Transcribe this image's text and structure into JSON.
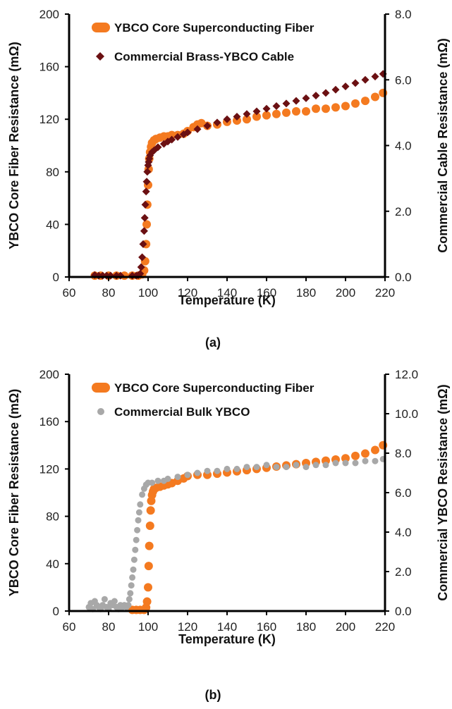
{
  "chart_data": [
    {
      "type": "scatter",
      "panel_label": "(a)",
      "xlabel": "Temperature (K)",
      "ylabel_left": "YBCO Core Fiber Resistance (mΩ)",
      "ylabel_right": "Commercial Cable Resistance (mΩ)",
      "xlim": [
        60,
        220
      ],
      "xticks": [
        "60",
        "80",
        "100",
        "120",
        "140",
        "160",
        "180",
        "200",
        "220"
      ],
      "ylim_left": [
        0,
        200
      ],
      "yticks_left": [
        "0",
        "40",
        "80",
        "120",
        "160",
        "200"
      ],
      "ylim_right": [
        0,
        8
      ],
      "yticks_right": [
        "0.0",
        "2.0",
        "4.0",
        "6.0",
        "8.0"
      ],
      "grid": false,
      "legend_position": "top-left",
      "series": [
        {
          "name": "YBCO Core Superconducting Fiber",
          "axis": "left",
          "color": "#f47a20",
          "marker": "circle",
          "x": [
            73,
            76,
            80,
            84,
            88,
            92,
            95,
            97,
            98,
            98.5,
            99,
            99.3,
            99.6,
            100,
            100.3,
            100.6,
            101,
            101.5,
            102,
            103,
            104,
            106,
            108,
            110,
            112,
            115,
            118,
            120,
            123,
            125,
            127,
            130,
            135,
            140,
            145,
            150,
            155,
            160,
            165,
            170,
            175,
            180,
            185,
            190,
            195,
            200,
            205,
            210,
            215,
            219
          ],
          "y": [
            1,
            1,
            1,
            1,
            1,
            1,
            1,
            2,
            5,
            12,
            25,
            40,
            55,
            70,
            82,
            90,
            95,
            99,
            102,
            104,
            105,
            106,
            107,
            107,
            108,
            108,
            109,
            111,
            114,
            116,
            117,
            115,
            116,
            118,
            119,
            120,
            122,
            123,
            124,
            125,
            126,
            126,
            128,
            128,
            129,
            130,
            132,
            134,
            137,
            140
          ]
        },
        {
          "name": "Commercial Brass-YBCO Cable",
          "axis": "right",
          "color": "#6b1012",
          "marker": "diamond",
          "x": [
            73,
            75,
            77,
            79,
            81,
            84,
            86,
            92,
            94,
            95,
            96,
            96.5,
            97,
            97.5,
            98,
            98.3,
            98.6,
            99,
            99.3,
            99.6,
            100,
            100.3,
            100.6,
            101,
            102,
            103,
            105,
            108,
            110,
            112,
            115,
            118,
            120,
            125,
            130,
            135,
            140,
            145,
            150,
            155,
            160,
            165,
            170,
            175,
            180,
            185,
            190,
            195,
            200,
            205,
            210,
            215,
            219
          ],
          "y": [
            0.06,
            0.04,
            0.04,
            0.04,
            0.04,
            0.04,
            0.04,
            0.04,
            0.04,
            0.05,
            0.1,
            0.3,
            0.6,
            1.0,
            1.4,
            1.8,
            2.2,
            2.6,
            2.9,
            3.2,
            3.4,
            3.5,
            3.6,
            3.7,
            3.8,
            3.85,
            3.95,
            4.05,
            4.12,
            4.18,
            4.26,
            4.34,
            4.4,
            4.5,
            4.6,
            4.7,
            4.8,
            4.88,
            4.96,
            5.04,
            5.12,
            5.2,
            5.28,
            5.36,
            5.44,
            5.52,
            5.6,
            5.7,
            5.8,
            5.9,
            6.0,
            6.1,
            6.18
          ]
        }
      ]
    },
    {
      "type": "scatter",
      "panel_label": "(b)",
      "xlabel": "Temperature (K)",
      "ylabel_left": "YBCO Core Fiber Resistance (mΩ)",
      "ylabel_right": "Commercial YBCO Resistance (mΩ)",
      "xlim": [
        60,
        220
      ],
      "xticks": [
        "60",
        "80",
        "100",
        "120",
        "140",
        "160",
        "180",
        "200",
        "220"
      ],
      "ylim_left": [
        0,
        200
      ],
      "yticks_left": [
        "0",
        "40",
        "80",
        "120",
        "160",
        "200"
      ],
      "ylim_right": [
        0,
        12
      ],
      "yticks_right": [
        "0.0",
        "2.0",
        "4.0",
        "6.0",
        "8.0",
        "10.0",
        "12.0"
      ],
      "grid": false,
      "legend_position": "top-left",
      "series": [
        {
          "name": "YBCO Core Superconducting Fiber",
          "axis": "left",
          "color": "#f47a20",
          "marker": "circle",
          "x": [
            92,
            94,
            96,
            98,
            99,
            99.5,
            100,
            100.3,
            100.6,
            101,
            101.3,
            101.6,
            102,
            102.5,
            103,
            104,
            106,
            108,
            110,
            112,
            115,
            118,
            120,
            125,
            130,
            135,
            140,
            145,
            150,
            155,
            160,
            165,
            170,
            175,
            180,
            185,
            190,
            195,
            200,
            205,
            210,
            215,
            219
          ],
          "y": [
            1,
            1,
            1,
            1,
            3,
            8,
            20,
            38,
            55,
            72,
            85,
            93,
            98,
            101,
            103,
            104,
            105,
            106,
            107,
            108,
            110,
            112,
            114,
            115,
            115,
            116,
            117,
            118,
            119,
            120,
            121,
            122,
            123,
            124,
            125,
            126,
            127,
            128,
            129,
            131,
            133,
            136,
            140
          ]
        },
        {
          "name": "Commercial Bulk YBCO",
          "axis": "right",
          "color": "#a8a8a8",
          "marker": "circle",
          "x": [
            70,
            71,
            72,
            73,
            74,
            75,
            76,
            77,
            78,
            79,
            80,
            81,
            82,
            83,
            84,
            85,
            86,
            87,
            88,
            89,
            90,
            90.5,
            91,
            91.5,
            92,
            92.5,
            93,
            93.5,
            94,
            94.5,
            95,
            95.5,
            96,
            97,
            98,
            99,
            100,
            102,
            105,
            108,
            110,
            115,
            120,
            125,
            130,
            135,
            140,
            145,
            150,
            155,
            160,
            165,
            170,
            175,
            180,
            185,
            190,
            195,
            200,
            205,
            210,
            215,
            219
          ],
          "y": [
            0.2,
            0.4,
            0.1,
            0.5,
            0.3,
            0.2,
            0.1,
            0.3,
            0.6,
            0.2,
            0.1,
            0.4,
            0.3,
            0.5,
            0.2,
            0.1,
            0.3,
            0.2,
            0.3,
            0.2,
            0.3,
            0.6,
            0.9,
            1.3,
            1.7,
            2.1,
            2.6,
            3.1,
            3.6,
            4.1,
            4.6,
            5.0,
            5.4,
            5.9,
            6.2,
            6.4,
            6.5,
            6.5,
            6.6,
            6.6,
            6.7,
            6.8,
            6.9,
            7.0,
            7.1,
            7.1,
            7.2,
            7.2,
            7.3,
            7.3,
            7.4,
            7.3,
            7.3,
            7.4,
            7.3,
            7.4,
            7.4,
            7.5,
            7.5,
            7.5,
            7.6,
            7.6,
            7.7
          ]
        }
      ]
    }
  ]
}
